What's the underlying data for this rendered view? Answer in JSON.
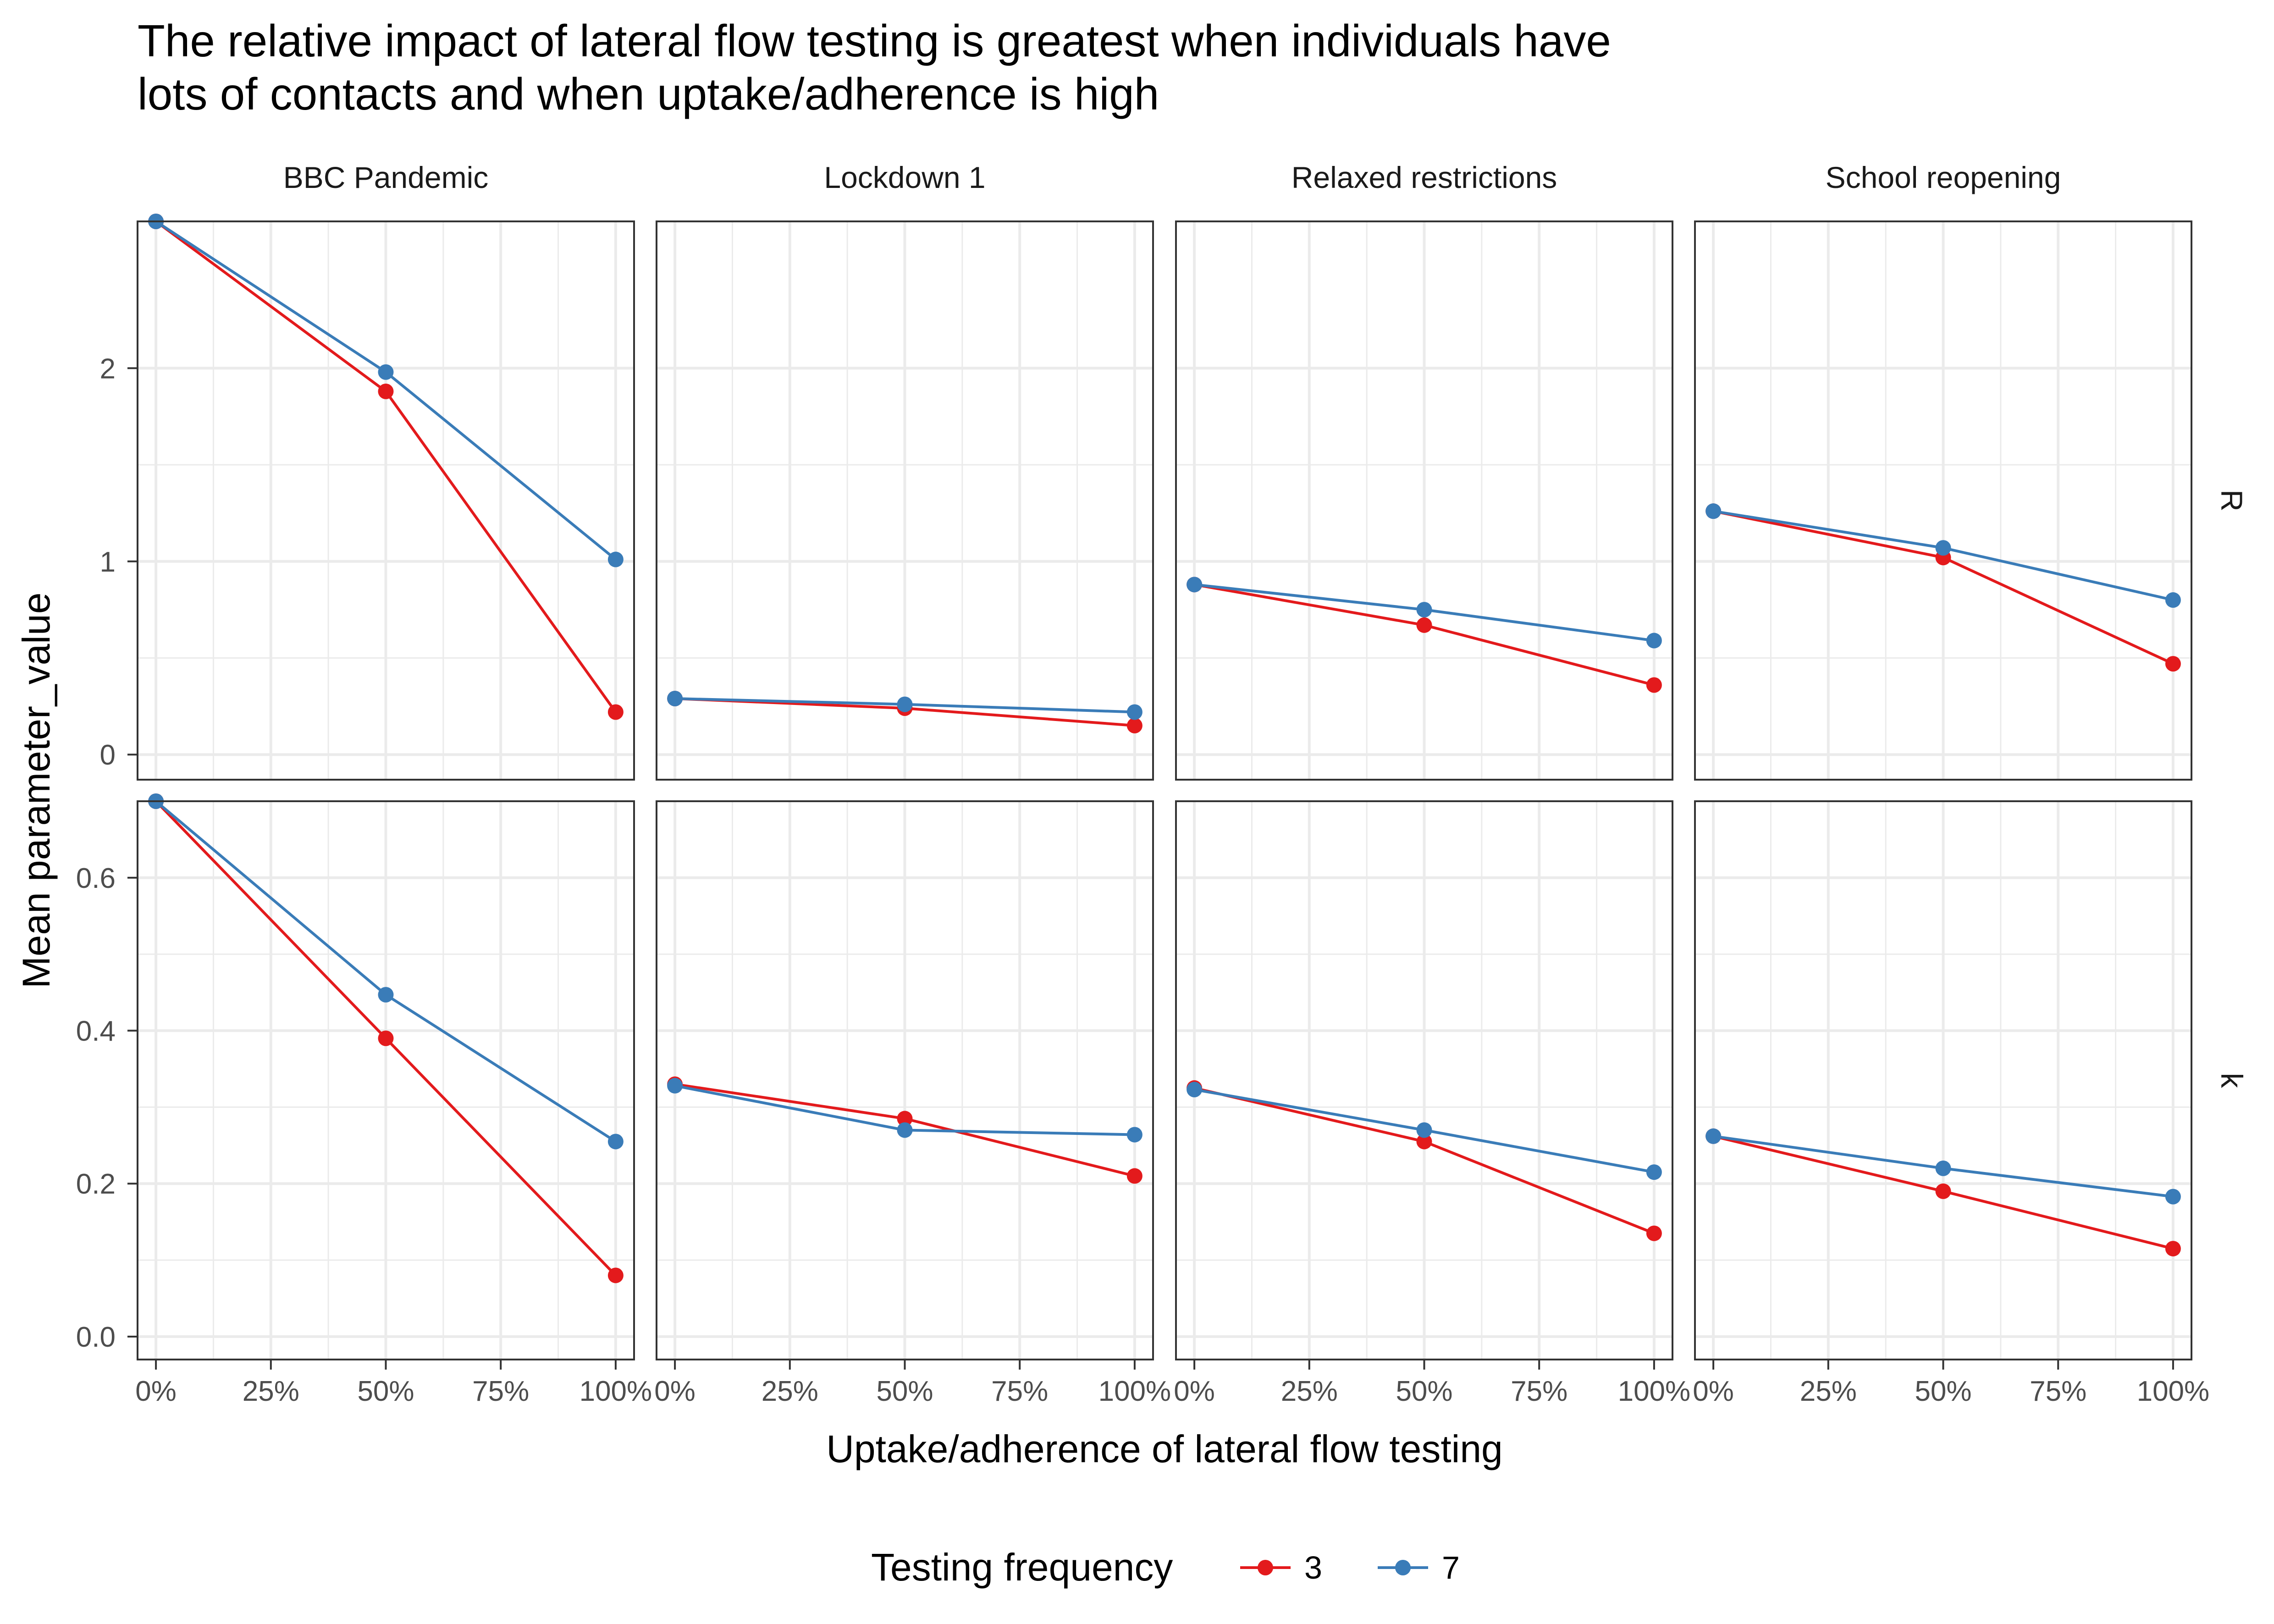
{
  "title_lines": [
    "The relative impact of lateral flow testing is greatest when individuals have",
    "lots of contacts and when uptake/adherence is high"
  ],
  "colors": {
    "series_3": "#e31a1c",
    "series_7": "#3a7cb8",
    "grid": "#ebebeb",
    "panel_border": "#333333",
    "text": "#000000",
    "tick_text": "#4d4d4d"
  },
  "chart_data": {
    "type": "line",
    "facets": {
      "columns": [
        "BBC Pandemic",
        "Lockdown 1",
        "Relaxed restrictions",
        "School reopening"
      ],
      "rows": [
        "R",
        "k"
      ]
    },
    "xlabel": "Uptake/adherence of lateral flow testing",
    "ylabel": "Mean parameter_value",
    "x": [
      0,
      50,
      100
    ],
    "x_ticks": [
      "0%",
      "25%",
      "50%",
      "75%",
      "100%"
    ],
    "x_tick_values": [
      0,
      25,
      50,
      75,
      100
    ],
    "xlim": [
      -4,
      104
    ],
    "rows_meta": {
      "R": {
        "ylim": [
          -0.13,
          2.76
        ],
        "y_ticks": [
          0,
          1,
          2
        ],
        "y_tick_labels": [
          "0",
          "1",
          "2"
        ]
      },
      "k": {
        "ylim": [
          -0.03,
          0.7
        ],
        "y_ticks": [
          0.0,
          0.2,
          0.4,
          0.6
        ],
        "y_tick_labels": [
          "0.0",
          "0.2",
          "0.4",
          "0.6"
        ]
      }
    },
    "legend": {
      "title": "Testing frequency",
      "position": "bottom"
    },
    "grid": true,
    "series": [
      {
        "name": "3",
        "values": {
          "R": {
            "BBC Pandemic": [
              2.76,
              1.88,
              0.22
            ],
            "Lockdown 1": [
              0.29,
              0.24,
              0.15
            ],
            "Relaxed restrictions": [
              0.88,
              0.67,
              0.36
            ],
            "School reopening": [
              1.26,
              1.02,
              0.47
            ]
          },
          "k": {
            "BBC Pandemic": [
              0.7,
              0.39,
              0.08
            ],
            "Lockdown 1": [
              0.33,
              0.285,
              0.21
            ],
            "Relaxed restrictions": [
              0.325,
              0.255,
              0.135
            ],
            "School reopening": [
              0.262,
              0.19,
              0.115
            ]
          }
        }
      },
      {
        "name": "7",
        "values": {
          "R": {
            "BBC Pandemic": [
              2.76,
              1.98,
              1.01
            ],
            "Lockdown 1": [
              0.29,
              0.26,
              0.22
            ],
            "Relaxed restrictions": [
              0.88,
              0.75,
              0.59
            ],
            "School reopening": [
              1.26,
              1.07,
              0.8
            ]
          },
          "k": {
            "BBC Pandemic": [
              0.7,
              0.447,
              0.255
            ],
            "Lockdown 1": [
              0.328,
              0.27,
              0.264
            ],
            "Relaxed restrictions": [
              0.323,
              0.27,
              0.215
            ],
            "School reopening": [
              0.262,
              0.22,
              0.183
            ]
          }
        }
      }
    ]
  }
}
